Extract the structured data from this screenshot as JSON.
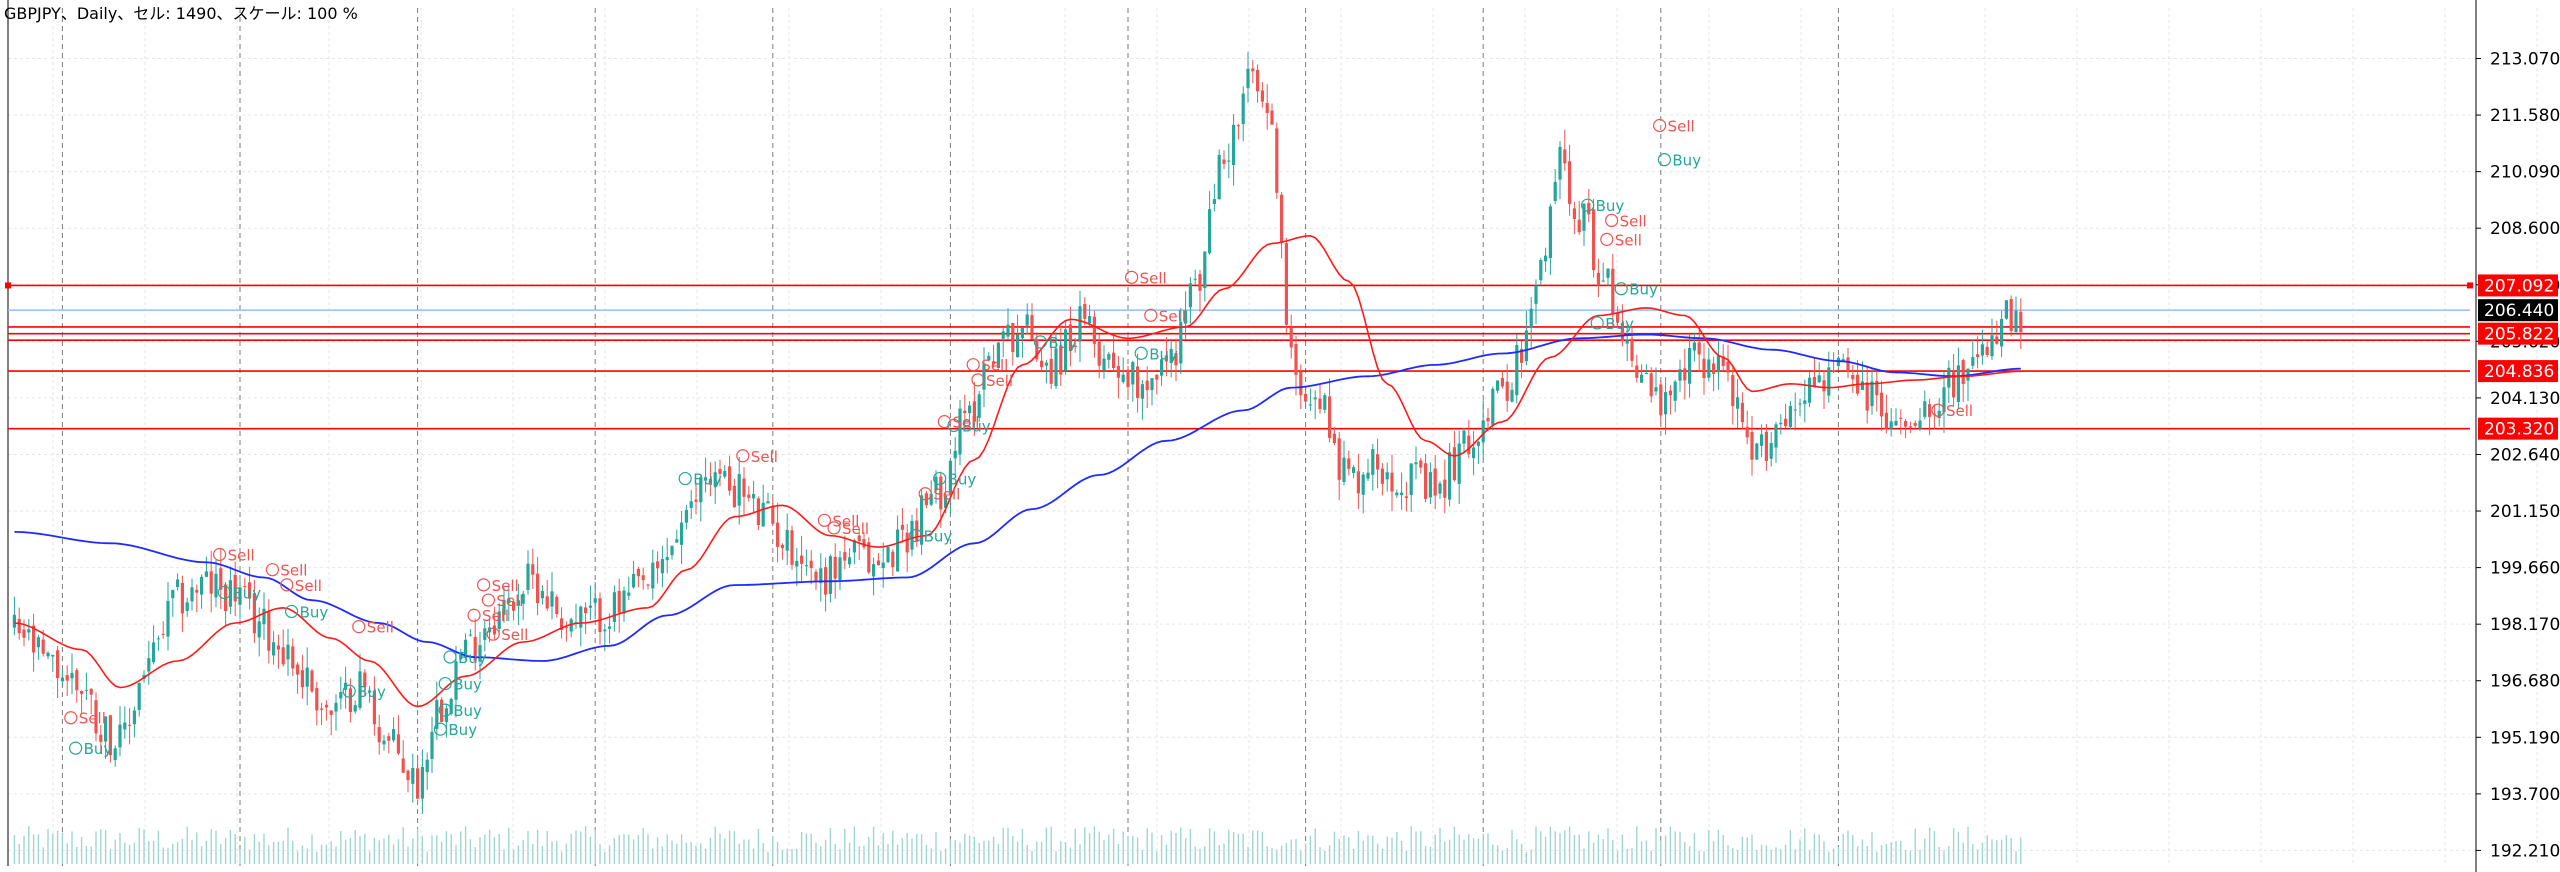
{
  "window": {
    "info_line": "GBPJPY、Daily、セル: 1490、スケール: 100 %"
  },
  "colors": {
    "background": "#ffffff",
    "grid": "#e6e6e6",
    "separator": "#7a7a7a",
    "candle_up": "#26a69a",
    "candle_down": "#ef5350",
    "ma_fast": "#ff1a1a",
    "ma_slow": "#1f2bff",
    "level_line": "#ff0000",
    "info_line_color": "#9ec3ff",
    "volume": "#9fd6d0",
    "sell_text": "#ef5350",
    "buy_text": "#26a69a"
  },
  "chart_data": {
    "type": "candlestick",
    "symbol": "GBPJPY",
    "timeframe": "Daily",
    "ylim": [
      191.8,
      214.4
    ],
    "y_ticks": [
      "213.070",
      "211.580",
      "210.090",
      "208.600",
      "207.110",
      "205.620",
      "204.130",
      "202.640",
      "201.150",
      "199.660",
      "198.170",
      "196.680",
      "195.190",
      "193.700",
      "192.210"
    ],
    "tick_values": [
      213.07,
      211.58,
      210.09,
      208.6,
      207.11,
      205.62,
      204.13,
      202.64,
      201.15,
      199.66,
      198.17,
      196.68,
      195.19,
      193.7,
      192.21
    ],
    "horizontal_levels": [
      {
        "label": "207.092",
        "value": 207.092,
        "color": "#ff0000"
      },
      {
        "label": "206.440",
        "value": 206.44,
        "color": "#000000",
        "line_color": "#9ec3ff"
      },
      {
        "label": "205.822",
        "value": 205.822,
        "color": "#ff0000"
      },
      {
        "label": "204.836",
        "value": 204.836,
        "color": "#ff0000"
      },
      {
        "label": "203.320",
        "value": 203.32,
        "color": "#ff0000"
      }
    ],
    "extra_levels": [
      206.0,
      205.65
    ],
    "separator_count": 11,
    "close_anchors": [
      [
        0,
        198.0
      ],
      [
        8,
        197.0
      ],
      [
        14,
        196.6
      ],
      [
        18,
        195.5
      ],
      [
        22,
        195.0
      ],
      [
        28,
        197.2
      ],
      [
        34,
        198.8
      ],
      [
        40,
        199.2
      ],
      [
        46,
        199.0
      ],
      [
        50,
        198.3
      ],
      [
        56,
        197.6
      ],
      [
        60,
        196.8
      ],
      [
        66,
        195.8
      ],
      [
        72,
        196.6
      ],
      [
        78,
        195.0
      ],
      [
        84,
        194.0
      ],
      [
        88,
        196.0
      ],
      [
        94,
        197.5
      ],
      [
        100,
        198.4
      ],
      [
        108,
        199.3
      ],
      [
        116,
        198.2
      ],
      [
        124,
        198.5
      ],
      [
        132,
        199.2
      ],
      [
        140,
        200.8
      ],
      [
        144,
        202.2
      ],
      [
        150,
        201.8
      ],
      [
        156,
        201.0
      ],
      [
        162,
        200.2
      ],
      [
        168,
        199.4
      ],
      [
        174,
        200.0
      ],
      [
        180,
        199.7
      ],
      [
        186,
        200.6
      ],
      [
        192,
        201.6
      ],
      [
        198,
        203.5
      ],
      [
        204,
        205.5
      ],
      [
        210,
        206.0
      ],
      [
        216,
        205.0
      ],
      [
        222,
        206.0
      ],
      [
        228,
        205.2
      ],
      [
        234,
        204.6
      ],
      [
        240,
        205.0
      ],
      [
        246,
        207.0
      ],
      [
        252,
        210.5
      ],
      [
        258,
        212.5
      ],
      [
        262,
        211.0
      ],
      [
        266,
        205.0
      ],
      [
        272,
        204.0
      ],
      [
        278,
        202.0
      ],
      [
        284,
        202.4
      ],
      [
        290,
        202.0
      ],
      [
        296,
        201.6
      ],
      [
        302,
        202.8
      ],
      [
        308,
        204.0
      ],
      [
        314,
        205.2
      ],
      [
        318,
        207.4
      ],
      [
        322,
        210.5
      ],
      [
        326,
        209.0
      ],
      [
        332,
        207.0
      ],
      [
        338,
        205.0
      ],
      [
        344,
        203.8
      ],
      [
        350,
        205.2
      ],
      [
        356,
        205.0
      ],
      [
        362,
        202.5
      ],
      [
        368,
        203.5
      ],
      [
        374,
        204.5
      ],
      [
        380,
        204.8
      ],
      [
        386,
        204.2
      ],
      [
        392,
        203.4
      ],
      [
        398,
        204.0
      ],
      [
        404,
        204.6
      ],
      [
        410,
        205.0
      ],
      [
        414,
        206.2
      ],
      [
        418,
        205.9
      ]
    ],
    "ma_fast_anchors": [
      [
        0,
        198.2
      ],
      [
        14,
        197.5
      ],
      [
        22,
        196.5
      ],
      [
        34,
        197.2
      ],
      [
        46,
        198.2
      ],
      [
        56,
        198.6
      ],
      [
        66,
        197.8
      ],
      [
        74,
        197.2
      ],
      [
        84,
        196.0
      ],
      [
        94,
        196.8
      ],
      [
        106,
        197.7
      ],
      [
        118,
        198.2
      ],
      [
        132,
        198.6
      ],
      [
        140,
        199.6
      ],
      [
        150,
        201.0
      ],
      [
        160,
        201.3
      ],
      [
        170,
        200.5
      ],
      [
        180,
        200.2
      ],
      [
        190,
        200.5
      ],
      [
        200,
        202.5
      ],
      [
        210,
        205.0
      ],
      [
        220,
        206.2
      ],
      [
        232,
        205.7
      ],
      [
        244,
        206.0
      ],
      [
        252,
        207.0
      ],
      [
        262,
        208.2
      ],
      [
        270,
        208.4
      ],
      [
        278,
        207.2
      ],
      [
        286,
        204.5
      ],
      [
        294,
        203.0
      ],
      [
        300,
        202.6
      ],
      [
        310,
        203.5
      ],
      [
        320,
        205.2
      ],
      [
        330,
        206.3
      ],
      [
        340,
        206.5
      ],
      [
        348,
        206.3
      ],
      [
        356,
        205.2
      ],
      [
        362,
        204.3
      ],
      [
        370,
        204.5
      ],
      [
        378,
        204.4
      ],
      [
        386,
        204.5
      ],
      [
        396,
        204.6
      ],
      [
        406,
        204.7
      ],
      [
        418,
        204.83
      ]
    ],
    "ma_slow_anchors": [
      [
        0,
        200.6
      ],
      [
        20,
        200.3
      ],
      [
        40,
        199.8
      ],
      [
        52,
        199.4
      ],
      [
        62,
        198.8
      ],
      [
        76,
        198.2
      ],
      [
        86,
        197.7
      ],
      [
        96,
        197.3
      ],
      [
        110,
        197.2
      ],
      [
        124,
        197.6
      ],
      [
        136,
        198.4
      ],
      [
        150,
        199.2
      ],
      [
        170,
        199.3
      ],
      [
        186,
        199.4
      ],
      [
        200,
        200.3
      ],
      [
        212,
        201.2
      ],
      [
        226,
        202.1
      ],
      [
        240,
        203.0
      ],
      [
        256,
        203.8
      ],
      [
        266,
        204.4
      ],
      [
        282,
        204.7
      ],
      [
        296,
        205.0
      ],
      [
        310,
        205.3
      ],
      [
        326,
        205.7
      ],
      [
        340,
        205.8
      ],
      [
        352,
        205.7
      ],
      [
        366,
        205.4
      ],
      [
        380,
        205.1
      ],
      [
        392,
        204.8
      ],
      [
        404,
        204.7
      ],
      [
        418,
        204.9
      ]
    ],
    "signals": [
      {
        "text": "Sell",
        "bar": 13,
        "value": 195.6,
        "type": "sell"
      },
      {
        "text": "Buy",
        "bar": 14,
        "value": 194.8,
        "type": "buy"
      },
      {
        "text": "Sell",
        "bar": 44,
        "value": 199.9,
        "type": "sell"
      },
      {
        "text": "Buy",
        "bar": 45,
        "value": 198.9,
        "type": "buy"
      },
      {
        "text": "Sell",
        "bar": 55,
        "value": 199.5,
        "type": "sell"
      },
      {
        "text": "Sell",
        "bar": 58,
        "value": 199.1,
        "type": "sell"
      },
      {
        "text": "Buy",
        "bar": 59,
        "value": 198.4,
        "type": "buy"
      },
      {
        "text": "Sell",
        "bar": 73,
        "value": 198.0,
        "type": "sell"
      },
      {
        "text": "Buy",
        "bar": 71,
        "value": 196.3,
        "type": "buy"
      },
      {
        "text": "Buy",
        "bar": 91,
        "value": 196.5,
        "type": "buy"
      },
      {
        "text": "Buy",
        "bar": 91,
        "value": 195.8,
        "type": "buy"
      },
      {
        "text": "Buy",
        "bar": 90,
        "value": 195.3,
        "type": "buy"
      },
      {
        "text": "Buy",
        "bar": 92,
        "value": 197.2,
        "type": "buy"
      },
      {
        "text": "Sell",
        "bar": 99,
        "value": 199.1,
        "type": "sell"
      },
      {
        "text": "Sell",
        "bar": 100,
        "value": 198.7,
        "type": "sell"
      },
      {
        "text": "Sell",
        "bar": 97,
        "value": 198.3,
        "type": "sell"
      },
      {
        "text": "Sell",
        "bar": 101,
        "value": 197.8,
        "type": "sell"
      },
      {
        "text": "Sell",
        "bar": 153,
        "value": 202.5,
        "type": "sell"
      },
      {
        "text": "Buy",
        "bar": 141,
        "value": 201.9,
        "type": "buy"
      },
      {
        "text": "Sell",
        "bar": 170,
        "value": 200.8,
        "type": "sell"
      },
      {
        "text": "Sell",
        "bar": 172,
        "value": 200.6,
        "type": "sell"
      },
      {
        "text": "Buy",
        "bar": 189,
        "value": 200.4,
        "type": "buy"
      },
      {
        "text": "Buy",
        "bar": 194,
        "value": 201.9,
        "type": "buy"
      },
      {
        "text": "Sell",
        "bar": 191,
        "value": 201.5,
        "type": "sell"
      },
      {
        "text": "Buy",
        "bar": 197,
        "value": 203.3,
        "type": "buy"
      },
      {
        "text": "Sell",
        "bar": 201,
        "value": 204.9,
        "type": "sell"
      },
      {
        "text": "Sell",
        "bar": 202,
        "value": 204.5,
        "type": "sell"
      },
      {
        "text": "Sell",
        "bar": 195,
        "value": 203.4,
        "type": "sell"
      },
      {
        "text": "Buy",
        "bar": 215,
        "value": 205.5,
        "type": "buy"
      },
      {
        "text": "Sell",
        "bar": 234,
        "value": 207.2,
        "type": "sell"
      },
      {
        "text": "Sell",
        "bar": 238,
        "value": 206.2,
        "type": "sell"
      },
      {
        "text": "Buy",
        "bar": 236,
        "value": 205.2,
        "type": "buy"
      },
      {
        "text": "Sell",
        "bar": 344,
        "value": 211.2,
        "type": "sell"
      },
      {
        "text": "Buy",
        "bar": 345,
        "value": 210.3,
        "type": "buy"
      },
      {
        "text": "Buy",
        "bar": 329,
        "value": 209.1,
        "type": "buy"
      },
      {
        "text": "Sell",
        "bar": 334,
        "value": 208.7,
        "type": "sell"
      },
      {
        "text": "Sell",
        "bar": 333,
        "value": 208.2,
        "type": "sell"
      },
      {
        "text": "Buy",
        "bar": 336,
        "value": 206.9,
        "type": "buy"
      },
      {
        "text": "Buy",
        "bar": 331,
        "value": 206.0,
        "type": "buy"
      },
      {
        "text": "Sell",
        "bar": 402,
        "value": 203.7,
        "type": "sell"
      }
    ]
  }
}
